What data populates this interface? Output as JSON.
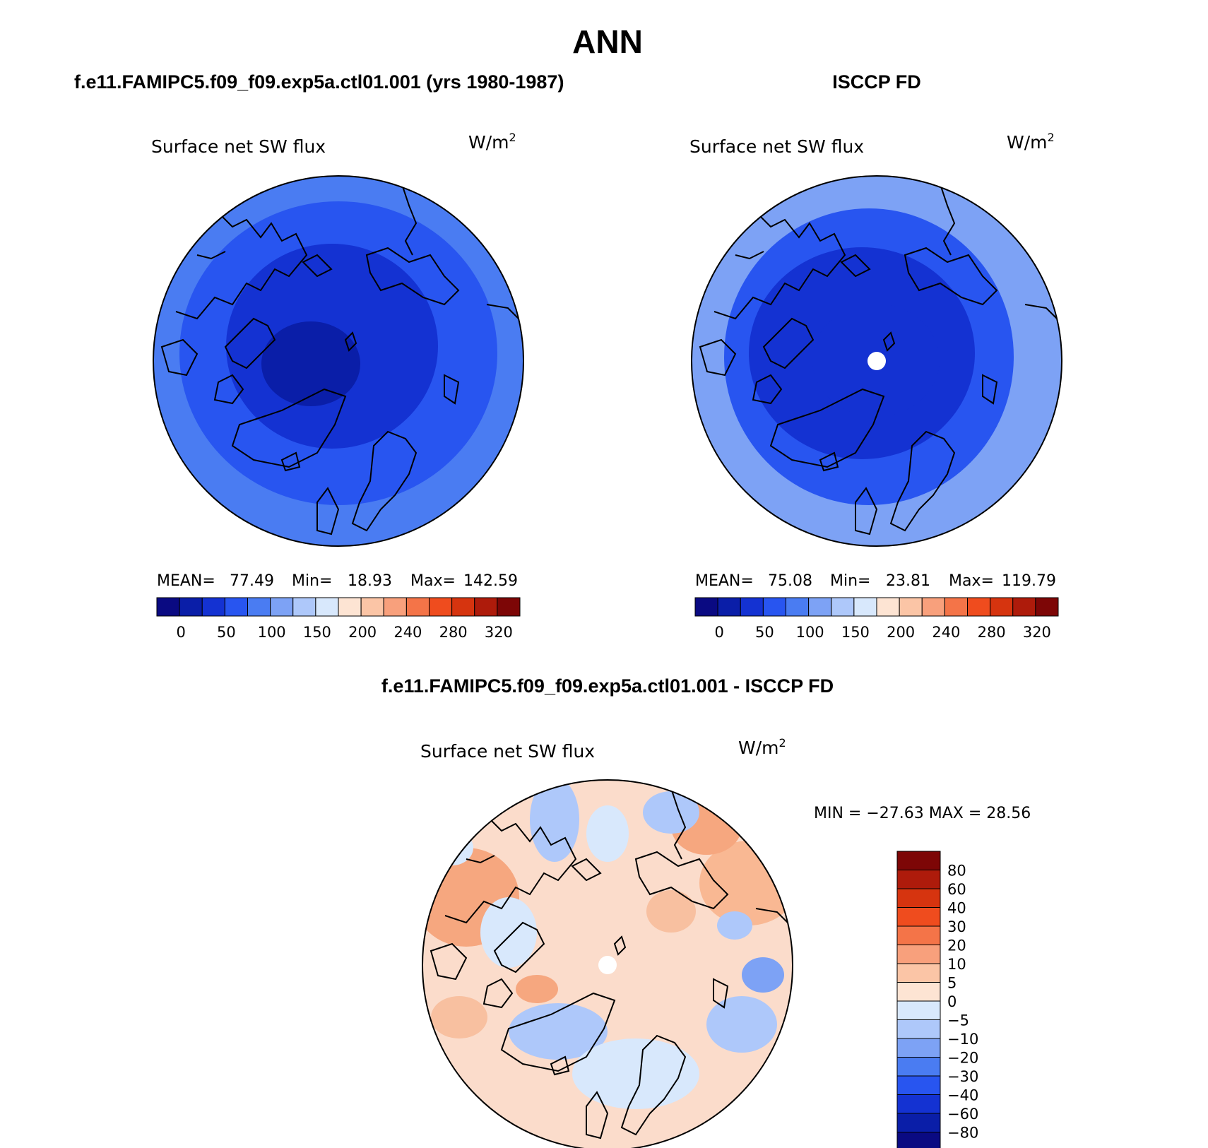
{
  "page": {
    "title": "ANN",
    "diff_title": "f.e11.FAMIPC5.f09_f09.exp5a.ctl01.001 - ISCCP FD"
  },
  "colors": {
    "full_scale": [
      "#0a0a82",
      "#0a1ea8",
      "#1432d2",
      "#2855f0",
      "#4a7cf2",
      "#7da2f5",
      "#aec8fa",
      "#d8e8fc",
      "#fde4d3",
      "#fbc5a6",
      "#f8a07c",
      "#f47448",
      "#ef4c1e",
      "#d6340f",
      "#ae1b0b",
      "#7d0606"
    ],
    "diff_scale": [
      "#0a0a82",
      "#0a1ea8",
      "#1432d2",
      "#2855f0",
      "#4a7cf2",
      "#7da2f5",
      "#aec8fa",
      "#d8e8fc",
      "#fde4d3",
      "#fbc5a6",
      "#f8a07c",
      "#f47448",
      "#ef4c1e",
      "#d6340f",
      "#ae1b0b",
      "#7d0606"
    ],
    "coastline": "#000000"
  },
  "panels": [
    {
      "id": "model",
      "header": "f.e11.FAMIPC5.f09_f09.exp5a.ctl01.001 (yrs 1980-1987)",
      "variable": "Surface net SW flux",
      "units": "W/m",
      "units_exp": "2",
      "stats": {
        "mean_label": "MEAN=",
        "mean": "77.49",
        "min_label": "Min=",
        "min": "18.93",
        "max_label": "Max=",
        "max": "142.59"
      },
      "scale_labels": [
        "0",
        "50",
        "100",
        "150",
        "200",
        "240",
        "280",
        "320"
      ],
      "levels": {
        "ring_outer": 4,
        "ring_mid": 3,
        "ring_inner": 2,
        "core": 1
      },
      "pole_missing": false
    },
    {
      "id": "obs",
      "header": "ISCCP FD",
      "variable": "Surface net SW flux",
      "units": "W/m",
      "units_exp": "2",
      "stats": {
        "mean_label": "MEAN=",
        "mean": "75.08",
        "min_label": "Min=",
        "min": "23.81",
        "max_label": "Max=",
        "max": "119.79"
      },
      "scale_labels": [
        "0",
        "50",
        "100",
        "150",
        "200",
        "240",
        "280",
        "320"
      ],
      "levels": {
        "ring_outer": 5,
        "ring_mid": 3,
        "ring_inner": 2,
        "core": 2
      },
      "pole_missing": true
    }
  ],
  "diff_panel": {
    "variable": "Surface net SW flux",
    "units": "W/m",
    "units_exp": "2",
    "minmax": "MIN = −27.63 MAX =   28.56",
    "scale_labels": [
      "80",
      "60",
      "40",
      "30",
      "20",
      "10",
      "5",
      "0",
      "−5",
      "−10",
      "−20",
      "−30",
      "−40",
      "−60",
      "−80"
    ],
    "pole_missing": true
  }
}
